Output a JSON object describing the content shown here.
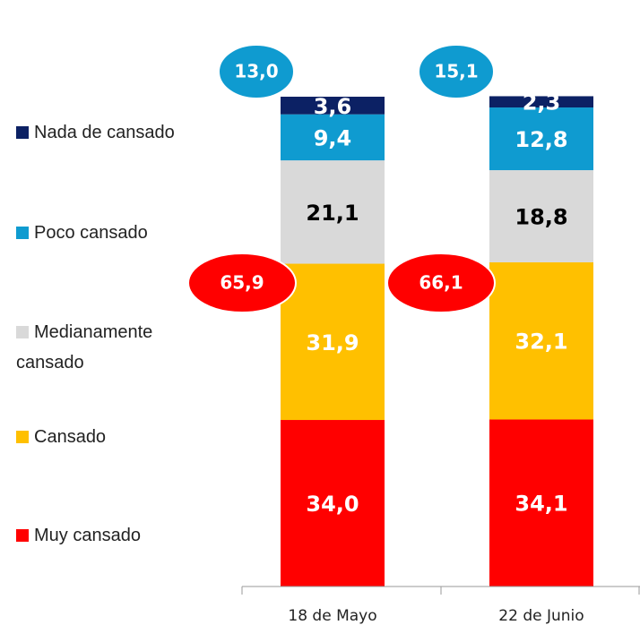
{
  "chart_data": {
    "type": "stacked_bar",
    "categories": [
      "18 de Mayo",
      "22 de Junio"
    ],
    "ylim": [
      0,
      100
    ],
    "series": [
      {
        "name": "Muy cansado",
        "color": "#ff0000",
        "label_color": "#ffffff",
        "values": [
          34.0,
          34.1
        ],
        "value_labels": [
          "34,0",
          "34,1"
        ]
      },
      {
        "name": "Cansado",
        "color": "#ffc000",
        "label_color": "#ffffff",
        "values": [
          31.9,
          32.1
        ],
        "value_labels": [
          "31,9",
          "32,1"
        ]
      },
      {
        "name": "Medianamente cansado",
        "color": "#d9d9d9",
        "label_color": "#000000",
        "values": [
          21.1,
          18.8
        ],
        "value_labels": [
          "21,1",
          "18,8"
        ]
      },
      {
        "name": "Poco cansado",
        "color": "#0f9bd0",
        "label_color": "#ffffff",
        "values": [
          9.4,
          12.8
        ],
        "value_labels": [
          "9,4",
          "12,8"
        ]
      },
      {
        "name": "Nada de cansado",
        "color": "#0c2164",
        "label_color": "#ffffff",
        "values": [
          3.6,
          2.3
        ],
        "value_labels": [
          "3,6",
          "2,3"
        ]
      }
    ],
    "annotations": [
      [
        {
          "value": 13.0,
          "label": "13,0",
          "color": "#0f9bd0"
        },
        {
          "value": 15.1,
          "label": "15,1",
          "color": "#0f9bd0"
        }
      ],
      [
        {
          "value": 65.9,
          "label": "65,9",
          "color": "#ff0000"
        },
        {
          "value": 66.1,
          "label": "66,1",
          "color": "#ff0000"
        }
      ]
    ]
  }
}
